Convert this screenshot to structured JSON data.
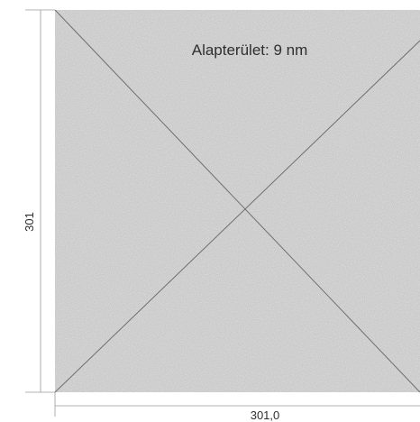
{
  "drawing": {
    "area_label": "Alapterület: 9 nm",
    "height_dimension": "301",
    "width_dimension": "301,0"
  },
  "colors": {
    "panel_fill": "#c9c9c9",
    "line": "#6f6f6f",
    "dimension_line": "#9a9a9a",
    "text": "#2f2f2f",
    "background": "#ffffff"
  }
}
